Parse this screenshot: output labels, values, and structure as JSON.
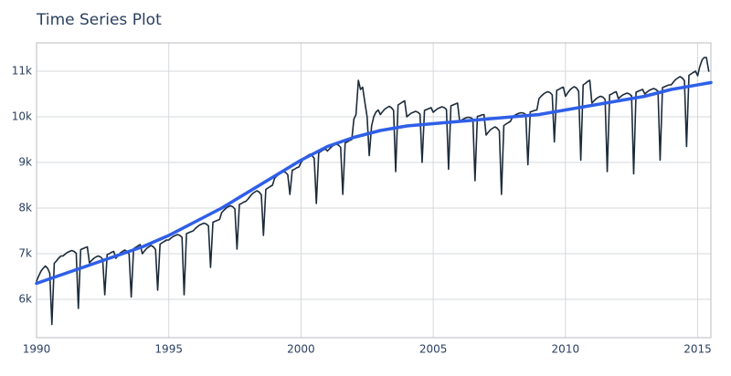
{
  "chart_data": {
    "type": "line",
    "title": "Time Series Plot",
    "xlim": [
      1990,
      2015.5
    ],
    "xticks": [
      1990,
      1995,
      2000,
      2005,
      2010,
      2015
    ],
    "ylim": [
      5160,
      11620
    ],
    "yticks": [
      {
        "value": 6000,
        "label": "6k"
      },
      {
        "value": 7000,
        "label": "7k"
      },
      {
        "value": 8000,
        "label": "8k"
      },
      {
        "value": 9000,
        "label": "9k"
      },
      {
        "value": 10000,
        "label": "10k"
      },
      {
        "value": 11000,
        "label": "11k"
      }
    ],
    "grid": true,
    "series": [
      {
        "color": "#1c2b3a",
        "x": [
          1990,
          1990.08,
          1990.17,
          1990.25,
          1990.33,
          1990.42,
          1990.5,
          1990.58,
          1990.67,
          1990.75,
          1990.83,
          1990.92,
          1991,
          1991.08,
          1991.17,
          1991.25,
          1991.33,
          1991.42,
          1991.5,
          1991.58,
          1991.67,
          1991.75,
          1991.83,
          1991.92,
          1992,
          1992.08,
          1992.17,
          1992.25,
          1992.33,
          1992.42,
          1992.5,
          1992.58,
          1992.67,
          1992.75,
          1992.83,
          1992.92,
          1993,
          1993.08,
          1993.17,
          1993.25,
          1993.33,
          1993.42,
          1993.5,
          1993.58,
          1993.67,
          1993.75,
          1993.83,
          1993.92,
          1994,
          1994.08,
          1994.17,
          1994.25,
          1994.33,
          1994.42,
          1994.5,
          1994.58,
          1994.67,
          1994.75,
          1994.83,
          1994.92,
          1995,
          1995.08,
          1995.17,
          1995.25,
          1995.33,
          1995.42,
          1995.5,
          1995.58,
          1995.67,
          1995.75,
          1995.83,
          1995.92,
          1996,
          1996.08,
          1996.17,
          1996.25,
          1996.33,
          1996.42,
          1996.5,
          1996.58,
          1996.67,
          1996.75,
          1996.83,
          1996.92,
          1997,
          1997.08,
          1997.17,
          1997.25,
          1997.33,
          1997.42,
          1997.5,
          1997.58,
          1997.67,
          1997.75,
          1997.83,
          1997.92,
          1998,
          1998.08,
          1998.17,
          1998.25,
          1998.33,
          1998.42,
          1998.5,
          1998.58,
          1998.67,
          1998.75,
          1998.83,
          1998.92,
          1999,
          1999.08,
          1999.17,
          1999.25,
          1999.33,
          1999.42,
          1999.5,
          1999.58,
          1999.67,
          1999.75,
          1999.83,
          1999.92,
          2000,
          2000.08,
          2000.17,
          2000.25,
          2000.33,
          2000.42,
          2000.5,
          2000.58,
          2000.67,
          2000.75,
          2000.83,
          2000.92,
          2001,
          2001.08,
          2001.17,
          2001.25,
          2001.33,
          2001.42,
          2001.5,
          2001.58,
          2001.67,
          2001.75,
          2001.83,
          2001.92,
          2002,
          2002.08,
          2002.17,
          2002.25,
          2002.33,
          2002.42,
          2002.5,
          2002.58,
          2002.67,
          2002.75,
          2002.83,
          2002.92,
          2003,
          2003.08,
          2003.17,
          2003.25,
          2003.33,
          2003.42,
          2003.5,
          2003.58,
          2003.67,
          2003.75,
          2003.83,
          2003.92,
          2004,
          2004.08,
          2004.17,
          2004.25,
          2004.33,
          2004.42,
          2004.5,
          2004.58,
          2004.67,
          2004.75,
          2004.83,
          2004.92,
          2005,
          2005.08,
          2005.17,
          2005.25,
          2005.33,
          2005.42,
          2005.5,
          2005.58,
          2005.67,
          2005.75,
          2005.83,
          2005.92,
          2006,
          2006.08,
          2006.17,
          2006.25,
          2006.33,
          2006.42,
          2006.5,
          2006.58,
          2006.67,
          2006.75,
          2006.83,
          2006.92,
          2007,
          2007.08,
          2007.17,
          2007.25,
          2007.33,
          2007.42,
          2007.5,
          2007.58,
          2007.67,
          2007.75,
          2007.83,
          2007.92,
          2008,
          2008.08,
          2008.17,
          2008.25,
          2008.33,
          2008.42,
          2008.5,
          2008.58,
          2008.67,
          2008.75,
          2008.83,
          2008.92,
          2009,
          2009.08,
          2009.17,
          2009.25,
          2009.33,
          2009.42,
          2009.5,
          2009.58,
          2009.67,
          2009.75,
          2009.83,
          2009.92,
          2010,
          2010.08,
          2010.17,
          2010.25,
          2010.33,
          2010.42,
          2010.5,
          2010.58,
          2010.67,
          2010.75,
          2010.83,
          2010.92,
          2011,
          2011.08,
          2011.17,
          2011.25,
          2011.33,
          2011.42,
          2011.5,
          2011.58,
          2011.67,
          2011.75,
          2011.83,
          2011.92,
          2012,
          2012.08,
          2012.17,
          2012.25,
          2012.33,
          2012.42,
          2012.5,
          2012.58,
          2012.67,
          2012.75,
          2012.83,
          2012.92,
          2013,
          2013.08,
          2013.17,
          2013.25,
          2013.33,
          2013.42,
          2013.5,
          2013.58,
          2013.67,
          2013.75,
          2013.83,
          2013.92,
          2014,
          2014.08,
          2014.17,
          2014.25,
          2014.33,
          2014.42,
          2014.5,
          2014.58,
          2014.67,
          2014.75,
          2014.83,
          2014.92,
          2015,
          2015.08,
          2015.17,
          2015.25,
          2015.33,
          2015.42
        ],
        "values": [
          6400,
          6510,
          6620,
          6680,
          6730,
          6680,
          6570,
          5450,
          6790,
          6840,
          6900,
          6950,
          6950,
          6990,
          7030,
          7050,
          7070,
          7050,
          7010,
          5800,
          7090,
          7110,
          7130,
          7150,
          6800,
          6850,
          6900,
          6930,
          6950,
          6930,
          6880,
          6100,
          6980,
          7000,
          7030,
          7050,
          6900,
          6960,
          7020,
          7050,
          7080,
          7050,
          6990,
          6050,
          7110,
          7140,
          7170,
          7200,
          7000,
          7060,
          7120,
          7150,
          7180,
          7150,
          7090,
          6200,
          7210,
          7240,
          7270,
          7300,
          7300,
          7340,
          7380,
          7400,
          7420,
          7400,
          7360,
          6100,
          7440,
          7460,
          7480,
          7500,
          7550,
          7590,
          7630,
          7650,
          7670,
          7650,
          7610,
          6700,
          7690,
          7710,
          7730,
          7750,
          7900,
          7950,
          8000,
          8030,
          8050,
          8030,
          7980,
          7100,
          8080,
          8100,
          8130,
          8150,
          8200,
          8260,
          8320,
          8350,
          8380,
          8350,
          8290,
          7400,
          8410,
          8440,
          8470,
          8500,
          8650,
          8700,
          8750,
          8780,
          8800,
          8780,
          8730,
          8300,
          8830,
          8850,
          8880,
          8900,
          9000,
          9060,
          9120,
          9150,
          9180,
          9150,
          9090,
          8100,
          9210,
          9240,
          9270,
          9300,
          9250,
          9300,
          9350,
          9380,
          9400,
          9380,
          9330,
          8300,
          9430,
          9450,
          9480,
          9500,
          9950,
          10050,
          10800,
          10600,
          10650,
          10300,
          10000,
          9150,
          9800,
          10000,
          10100,
          10150,
          10050,
          10110,
          10170,
          10200,
          10230,
          10200,
          10140,
          8800,
          10260,
          10290,
          10320,
          10350,
          10000,
          10040,
          10080,
          10100,
          10120,
          10100,
          10060,
          9000,
          10140,
          10160,
          10180,
          10200,
          10100,
          10140,
          10180,
          10200,
          10220,
          10200,
          10160,
          8850,
          10240,
          10260,
          10280,
          10300,
          9900,
          9930,
          9960,
          9980,
          9990,
          9980,
          9950,
          8600,
          10010,
          10020,
          10040,
          10050,
          9600,
          9660,
          9720,
          9750,
          9780,
          9750,
          9690,
          8300,
          9810,
          9840,
          9870,
          9900,
          10000,
          10030,
          10060,
          10080,
          10090,
          10080,
          10050,
          8950,
          10110,
          10120,
          10140,
          10150,
          10400,
          10450,
          10500,
          10530,
          10550,
          10530,
          10480,
          9450,
          10580,
          10600,
          10630,
          10650,
          10450,
          10520,
          10590,
          10630,
          10660,
          10630,
          10560,
          9050,
          10700,
          10730,
          10770,
          10800,
          10300,
          10350,
          10400,
          10430,
          10450,
          10430,
          10380,
          8800,
          10480,
          10500,
          10530,
          10550,
          10400,
          10440,
          10480,
          10500,
          10520,
          10500,
          10460,
          8750,
          10540,
          10560,
          10580,
          10600,
          10500,
          10540,
          10580,
          10600,
          10620,
          10600,
          10560,
          9050,
          10640,
          10660,
          10680,
          10700,
          10700,
          10760,
          10820,
          10850,
          10880,
          10850,
          10790,
          9350,
          10910,
          10940,
          10970,
          11000,
          10900,
          11100,
          11250,
          11300,
          11300,
          11000
        ]
      },
      {
        "color": "#2f5fe8",
        "x": [
          1990,
          1991,
          1992,
          1993,
          1994,
          1995,
          1996,
          1997,
          1998,
          1999,
          2000,
          2001,
          2002,
          2003,
          2004,
          2005,
          2006,
          2007,
          2008,
          2009,
          2010,
          2011,
          2012,
          2013,
          2014,
          2015.5
        ],
        "values": [
          6350,
          6550,
          6750,
          6950,
          7150,
          7400,
          7700,
          8000,
          8350,
          8700,
          9050,
          9350,
          9550,
          9700,
          9800,
          9850,
          9900,
          9950,
          10000,
          10050,
          10150,
          10250,
          10350,
          10450,
          10600,
          10750
        ]
      }
    ]
  }
}
